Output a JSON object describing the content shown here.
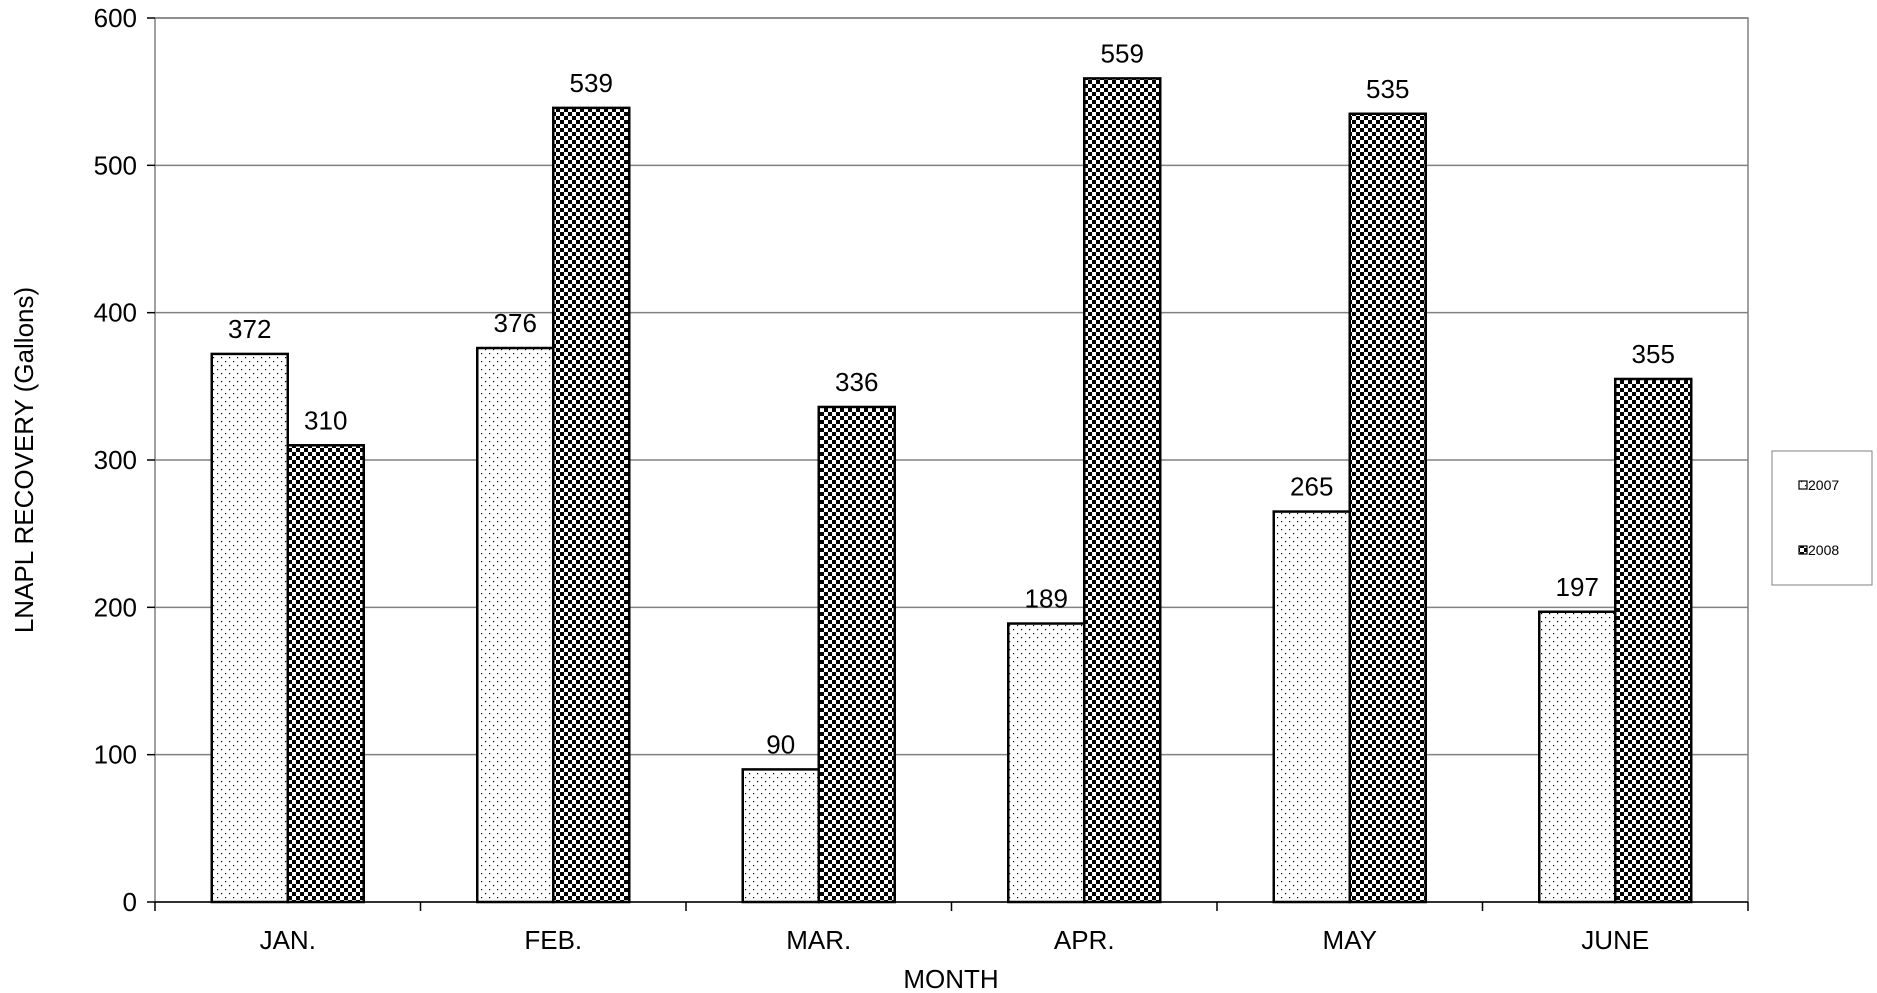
{
  "chart_data": {
    "type": "bar",
    "categories": [
      "JAN.",
      "FEB.",
      "MAR.",
      "APR.",
      "MAY",
      "JUNE"
    ],
    "series": [
      {
        "name": "2007",
        "values": [
          372,
          376,
          90,
          189,
          265,
          197
        ],
        "pattern": "dots"
      },
      {
        "name": "2008",
        "values": [
          310,
          539,
          336,
          559,
          535,
          355
        ],
        "pattern": "checker"
      }
    ],
    "title": "",
    "xlabel": "MONTH",
    "ylabel": "LNAPL RECOVERY (Gallons)",
    "ylim": [
      0,
      600
    ],
    "yticks": [
      0,
      100,
      200,
      300,
      400,
      500,
      600
    ],
    "grid": true,
    "legend_position": "right",
    "data_labels": true,
    "colors": {
      "grid": "#808080",
      "bar_stroke": "#000000",
      "pattern_dark": "#000000",
      "background": "#ffffff"
    }
  }
}
